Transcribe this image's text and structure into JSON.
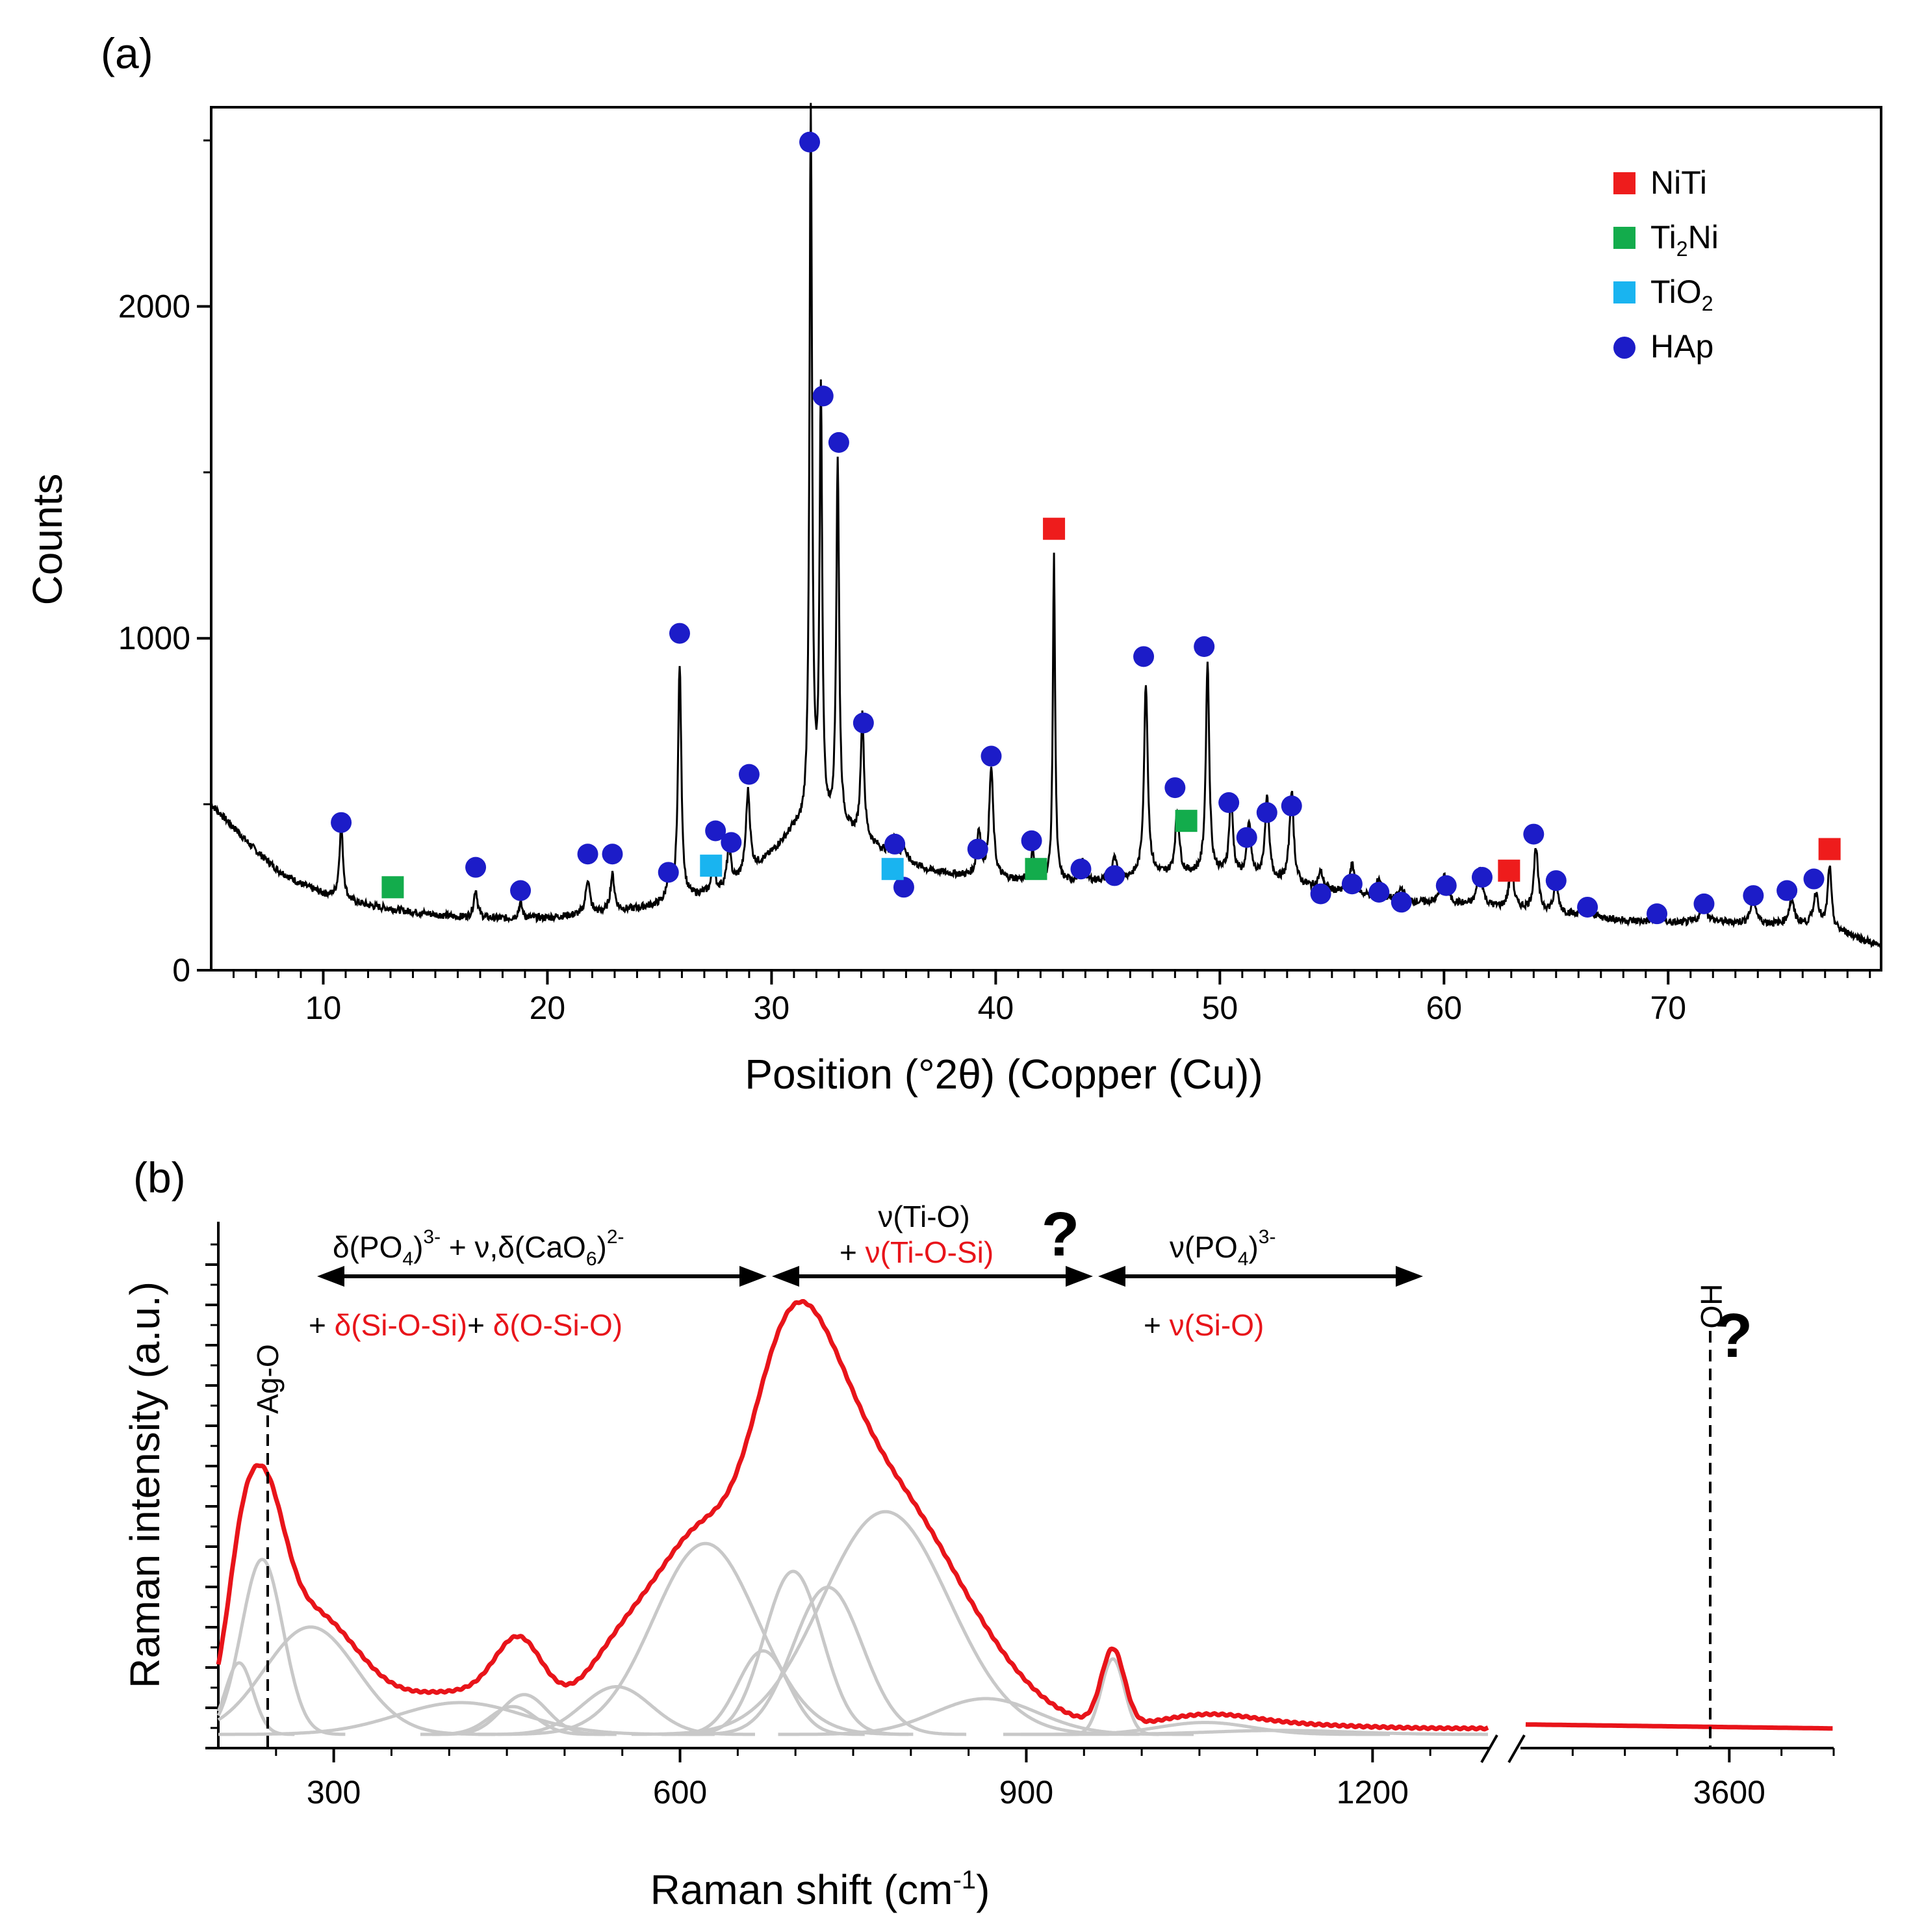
{
  "chart_data": [
    {
      "type": "line",
      "panel_label": "(a)",
      "xlabel": "Position (°2θ) (Copper (Cu))",
      "ylabel": "Counts",
      "xlim": [
        5,
        79.5
      ],
      "ylim": [
        0,
        2600
      ],
      "xticks": [
        10,
        20,
        30,
        40,
        50,
        60,
        70
      ],
      "yticks": [
        0,
        1000,
        2000
      ],
      "baseline": [
        [
          5,
          500
        ],
        [
          6,
          430
        ],
        [
          7,
          360
        ],
        [
          8,
          300
        ],
        [
          9,
          260
        ],
        [
          10,
          230
        ],
        [
          11,
          210
        ],
        [
          12,
          195
        ],
        [
          14,
          175
        ],
        [
          16,
          160
        ],
        [
          18,
          155
        ],
        [
          20,
          158
        ],
        [
          22,
          170
        ],
        [
          24,
          185
        ],
        [
          26,
          210
        ],
        [
          28,
          250
        ],
        [
          29,
          290
        ],
        [
          30,
          350
        ],
        [
          31,
          420
        ],
        [
          33,
          430
        ],
        [
          35,
          360
        ],
        [
          37,
          300
        ],
        [
          39,
          280
        ],
        [
          41,
          270
        ],
        [
          43,
          265
        ],
        [
          45,
          270
        ],
        [
          47,
          285
        ],
        [
          50,
          290
        ],
        [
          52,
          275
        ],
        [
          54,
          250
        ],
        [
          56,
          225
        ],
        [
          58,
          205
        ],
        [
          60,
          200
        ],
        [
          62,
          190
        ],
        [
          64,
          180
        ],
        [
          66,
          165
        ],
        [
          68,
          150
        ],
        [
          70,
          140
        ],
        [
          72,
          145
        ],
        [
          74,
          140
        ],
        [
          76,
          135
        ],
        [
          78,
          110
        ],
        [
          79.5,
          70
        ]
      ],
      "peaks": [
        [
          10.8,
          220,
          0.2
        ],
        [
          16.8,
          85,
          0.2
        ],
        [
          18.8,
          45,
          0.2
        ],
        [
          21.8,
          105,
          0.22
        ],
        [
          22.9,
          110,
          0.22
        ],
        [
          25.4,
          70,
          0.2
        ],
        [
          25.9,
          710,
          0.18
        ],
        [
          27.4,
          90,
          0.15
        ],
        [
          28.1,
          120,
          0.2
        ],
        [
          28.95,
          250,
          0.22
        ],
        [
          31.75,
          2150,
          0.14
        ],
        [
          32.2,
          1300,
          0.14
        ],
        [
          32.95,
          1100,
          0.15
        ],
        [
          34.05,
          370,
          0.18
        ],
        [
          35.5,
          60,
          0.18
        ],
        [
          35.9,
          40,
          0.2
        ],
        [
          39.25,
          140,
          0.22
        ],
        [
          39.8,
          330,
          0.22
        ],
        [
          41.65,
          90,
          0.2
        ],
        [
          42.6,
          980,
          0.12
        ],
        [
          43.85,
          60,
          0.22
        ],
        [
          45.3,
          60,
          0.25
        ],
        [
          46.7,
          580,
          0.2
        ],
        [
          48.1,
          190,
          0.22
        ],
        [
          49.45,
          640,
          0.18
        ],
        [
          50.5,
          230,
          0.2
        ],
        [
          51.3,
          160,
          0.2
        ],
        [
          52.1,
          240,
          0.22
        ],
        [
          53.2,
          280,
          0.22
        ],
        [
          54.5,
          50,
          0.25
        ],
        [
          55.9,
          90,
          0.3
        ],
        [
          57.1,
          60,
          0.3
        ],
        [
          58.1,
          40,
          0.3
        ],
        [
          60.0,
          80,
          0.35
        ],
        [
          61.6,
          110,
          0.28
        ],
        [
          63.0,
          120,
          0.25
        ],
        [
          64.1,
          190,
          0.22
        ],
        [
          65.0,
          80,
          0.25
        ],
        [
          66.4,
          40,
          0.3
        ],
        [
          69.6,
          30,
          0.35
        ],
        [
          71.6,
          50,
          0.35
        ],
        [
          73.8,
          70,
          0.3
        ],
        [
          75.5,
          70,
          0.3
        ],
        [
          76.6,
          100,
          0.3
        ],
        [
          77.2,
          190,
          0.2
        ]
      ],
      "markers": [
        {
          "phase": "HAp",
          "points": [
            [
              10.8,
              445
            ],
            [
              16.8,
              310
            ],
            [
              18.8,
              240
            ],
            [
              21.8,
              350
            ],
            [
              22.9,
              350
            ],
            [
              25.4,
              295
            ],
            [
              25.9,
              1015
            ],
            [
              27.5,
              420
            ],
            [
              28.2,
              385
            ],
            [
              29.0,
              590
            ],
            [
              31.7,
              2495
            ],
            [
              32.3,
              1730
            ],
            [
              33.0,
              1590
            ],
            [
              34.1,
              745
            ],
            [
              35.5,
              380
            ],
            [
              35.9,
              250
            ],
            [
              39.2,
              365
            ],
            [
              39.8,
              645
            ],
            [
              41.6,
              390
            ],
            [
              43.8,
              305
            ],
            [
              45.3,
              285
            ],
            [
              46.6,
              945
            ],
            [
              48.0,
              550
            ],
            [
              49.3,
              975
            ],
            [
              50.4,
              505
            ],
            [
              51.2,
              400
            ],
            [
              52.1,
              475
            ],
            [
              53.2,
              495
            ],
            [
              54.5,
              230
            ],
            [
              55.9,
              260
            ],
            [
              57.1,
              235
            ],
            [
              58.1,
              205
            ],
            [
              60.1,
              255
            ],
            [
              61.7,
              280
            ],
            [
              64.0,
              410
            ],
            [
              65.0,
              270
            ],
            [
              66.4,
              190
            ],
            [
              69.5,
              170
            ],
            [
              71.6,
              200
            ],
            [
              73.8,
              225
            ],
            [
              75.3,
              240
            ],
            [
              76.5,
              275
            ]
          ]
        },
        {
          "phase": "NiTi",
          "points": [
            [
              42.6,
              1330
            ],
            [
              62.9,
              300
            ],
            [
              77.2,
              365
            ]
          ]
        },
        {
          "phase": "Ti2Ni",
          "points": [
            [
              13.1,
              250
            ],
            [
              41.8,
              305
            ],
            [
              48.5,
              450
            ]
          ]
        },
        {
          "phase": "TiO2",
          "points": [
            [
              27.3,
              315
            ],
            [
              35.4,
              305
            ]
          ]
        }
      ],
      "legend": {
        "position": "top-right",
        "entries": [
          {
            "label": "NiTi",
            "color": "#ee1c1c",
            "shape": "square"
          },
          {
            "label": "Ti",
            "sub": "2",
            "tail": "Ni",
            "color": "#13ac4c",
            "shape": "square"
          },
          {
            "label": "TiO",
            "sub": "2",
            "tail": "",
            "color": "#19b4f0",
            "shape": "square"
          },
          {
            "label": "HAp",
            "color": "#1c1cc8",
            "shape": "circle"
          }
        ]
      }
    },
    {
      "type": "line",
      "panel_label": "(b)",
      "xlabel_main": "Raman shift (cm",
      "xlabel_sup": "-1",
      "xlabel_tail": ")",
      "ylabel": "Raman intensity (a.u.)",
      "xlim_segment1": [
        200,
        1300
      ],
      "xlim_segment2": [
        3400,
        3700
      ],
      "xticks": [
        300,
        600,
        900,
        1200,
        3600
      ],
      "ylim": [
        0,
        1.0
      ],
      "fit_components": [
        [
          218,
          0.18,
          12
        ],
        [
          238,
          0.44,
          18
        ],
        [
          280,
          0.27,
          40
        ],
        [
          410,
          0.08,
          55
        ],
        [
          455,
          0.07,
          20
        ],
        [
          465,
          0.1,
          20
        ],
        [
          545,
          0.12,
          30
        ],
        [
          622,
          0.48,
          45
        ],
        [
          672,
          0.21,
          22
        ],
        [
          698,
          0.41,
          25
        ],
        [
          728,
          0.37,
          30
        ],
        [
          778,
          0.56,
          55
        ],
        [
          865,
          0.09,
          45
        ],
        [
          975,
          0.19,
          10
        ],
        [
          1055,
          0.03,
          40
        ],
        [
          1120,
          0.01,
          60
        ]
      ],
      "baseline_segment1": [
        [
          200,
          0.04
        ],
        [
          400,
          0.03
        ],
        [
          700,
          0.035
        ],
        [
          1000,
          0.02
        ],
        [
          1300,
          0.02
        ]
      ],
      "envelope_segment2": [
        [
          3405,
          0.03
        ],
        [
          3700,
          0.02
        ]
      ],
      "annotations": {
        "group1_black": "δ(PO",
        "group1_sub1": "4",
        "group1_sup1": "3-",
        "group1_mid": "+ ν,δ(CaO",
        "group1_sub2": "6",
        "group1_sup2": "2-",
        "group1_plus": "+ ",
        "group1_red_a": "δ(Si-O-Si)",
        "group1_plus2": "+ ",
        "group1_red_b": "δ(O-Si-O)",
        "group2_black": "ν(Ti-O)",
        "group2_plus": "+ ",
        "group2_red": "ν(Ti-O-Si)",
        "group3_black": "ν(PO",
        "group3_sub": "4",
        "group3_sup": "3-",
        "group3_plus": "+ ",
        "group3_red": "ν(Si-O)",
        "question_1": "?",
        "question_2": "?",
        "ag_label": "Ag-O",
        "oh_label": "OH"
      },
      "ag_o_position": 240,
      "oh_position": 3590,
      "line_color": "#e8141a",
      "fit_color": "#c8c8c8"
    }
  ]
}
